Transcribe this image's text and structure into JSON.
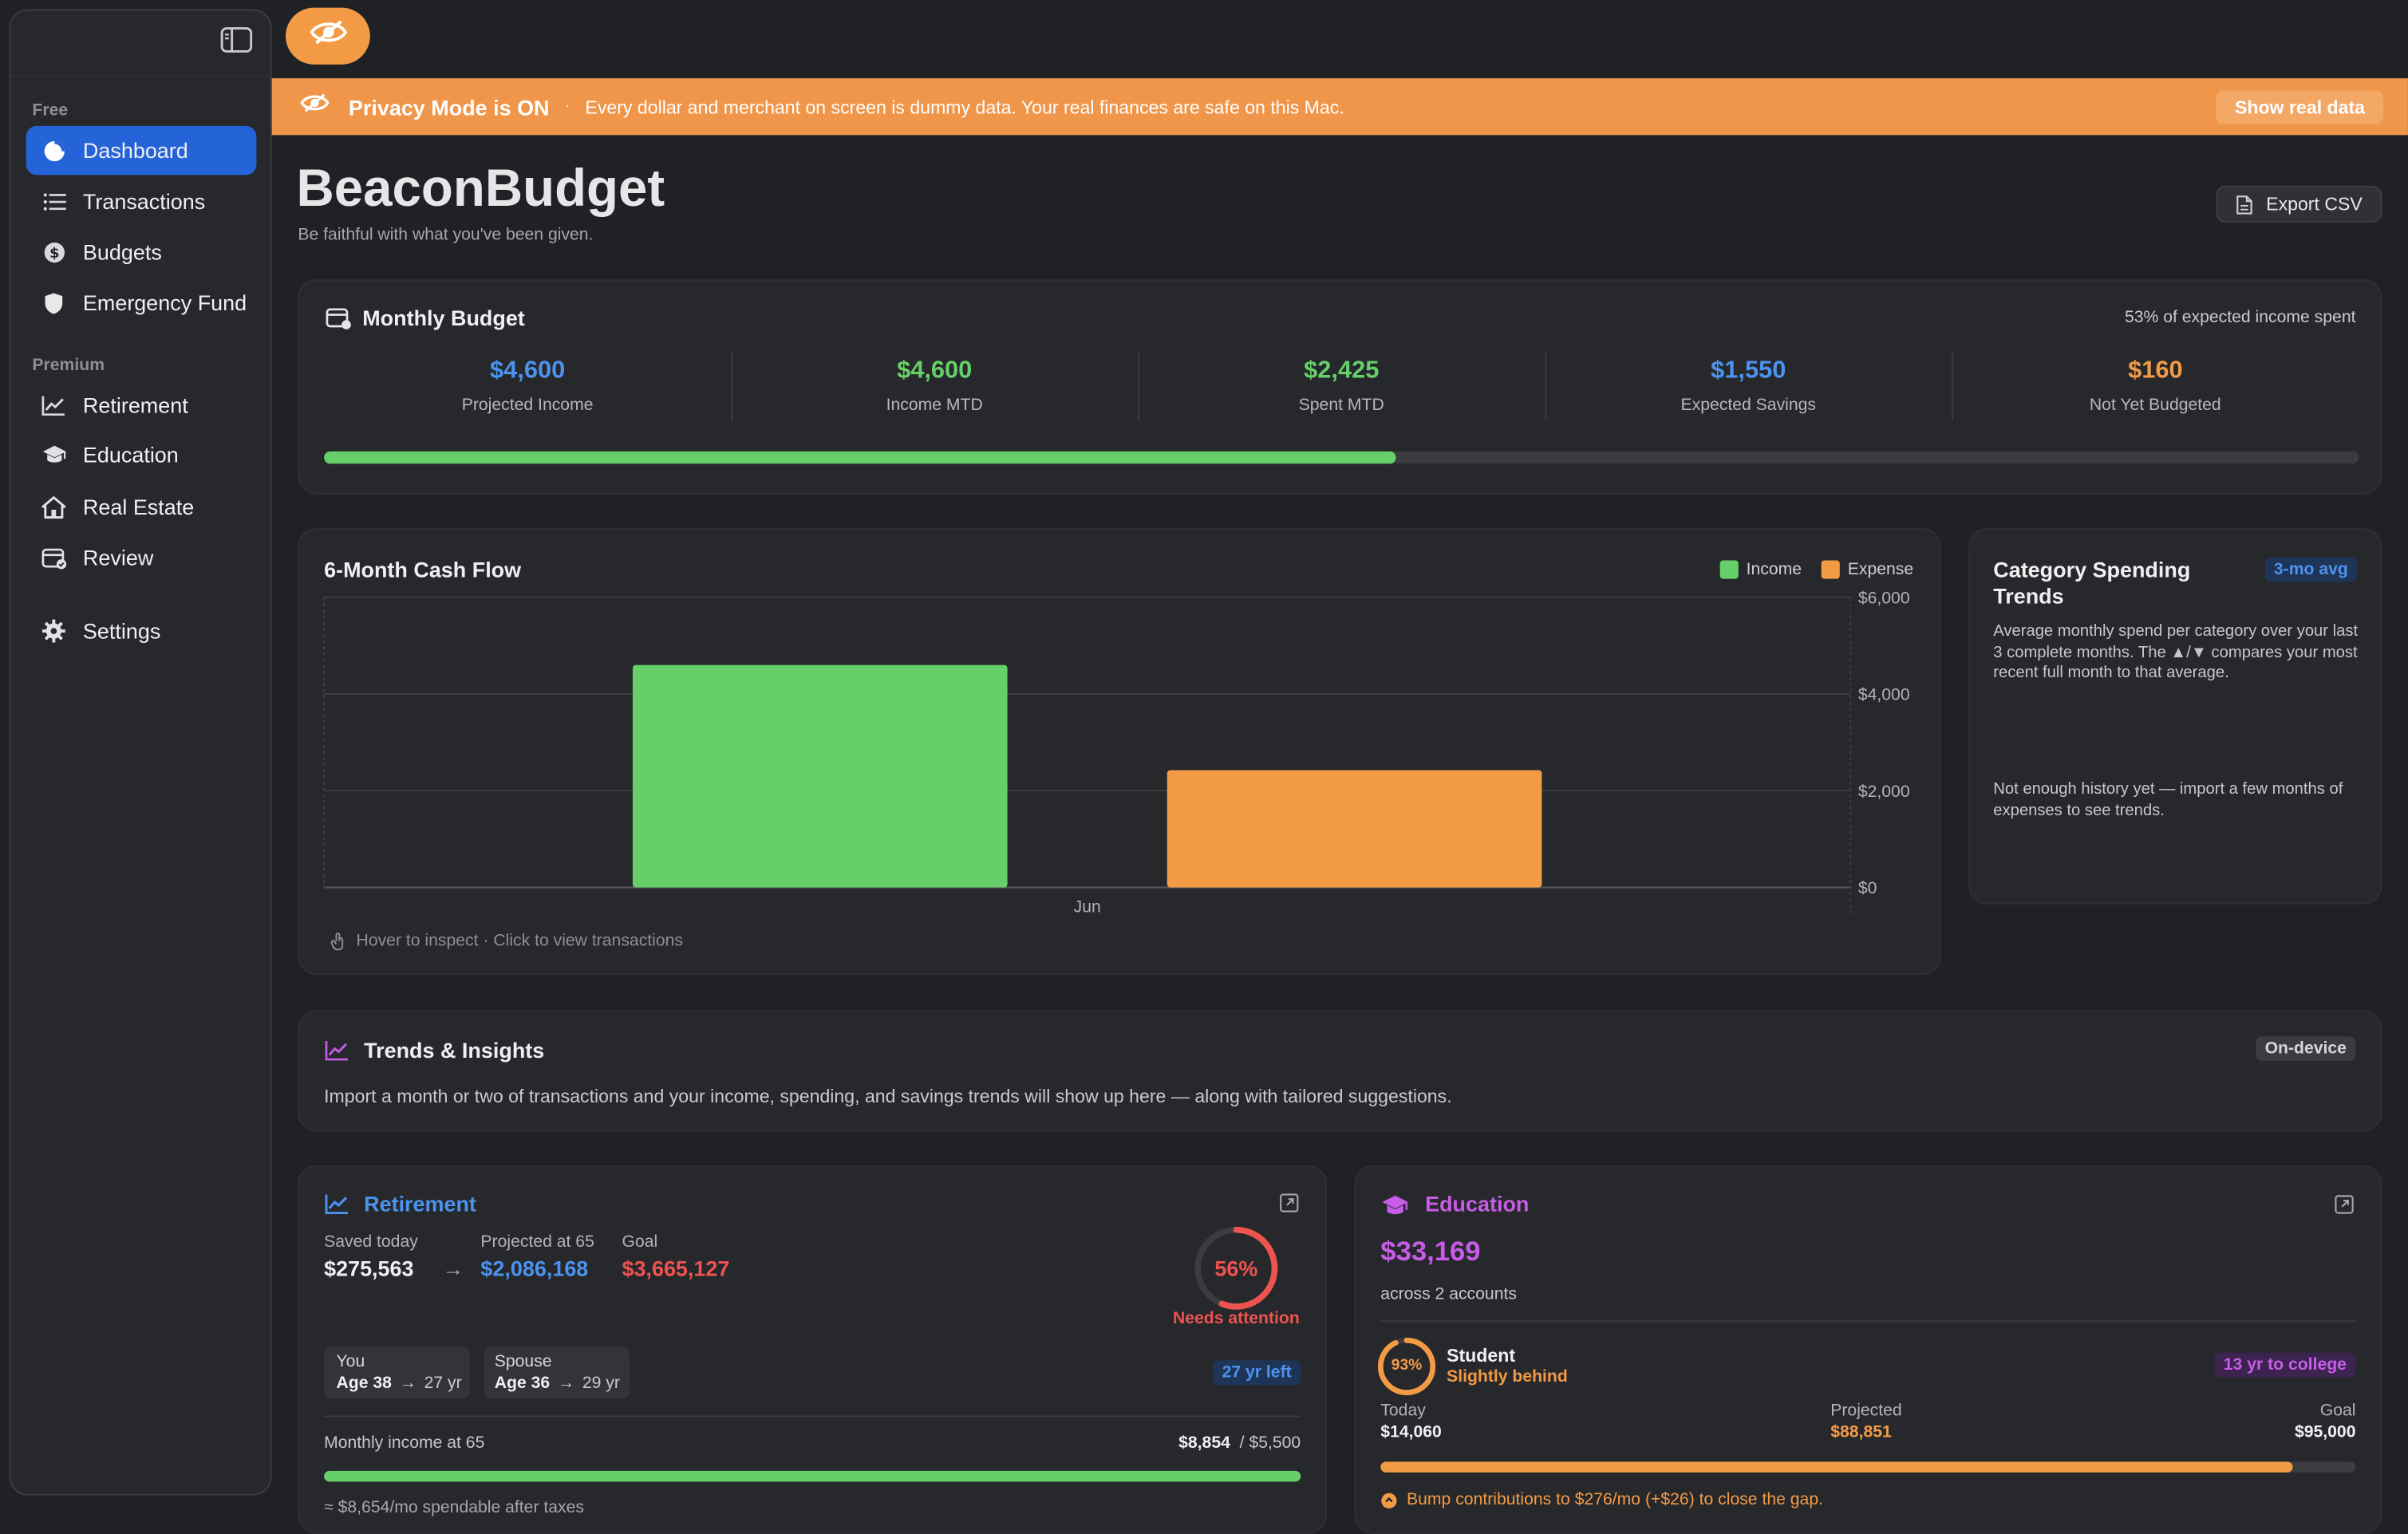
{
  "colors": {
    "accent_blue": "#2563d9",
    "orange": "#f0964a",
    "green": "#66cf69",
    "blue_text": "#4b93ee",
    "red": "#ef5350",
    "purple": "#c85ce8"
  },
  "sidebar": {
    "free_label": "Free",
    "premium_label": "Premium",
    "toggle_icon": "sidebar-toggle-icon",
    "items": [
      {
        "label": "Dashboard",
        "icon": "pie-chart-icon",
        "active": true
      },
      {
        "label": "Transactions",
        "icon": "list-icon"
      },
      {
        "label": "Budgets",
        "icon": "dollar-circle-icon"
      },
      {
        "label": "Emergency Fund",
        "icon": "shield-icon"
      },
      {
        "label": "Retirement",
        "icon": "line-chart-icon"
      },
      {
        "label": "Education",
        "icon": "graduation-cap-icon"
      },
      {
        "label": "Real Estate",
        "icon": "house-icon"
      },
      {
        "label": "Review",
        "icon": "calendar-check-icon"
      },
      {
        "label": "Settings",
        "icon": "gear-icon"
      }
    ]
  },
  "banner": {
    "title": "Privacy Mode is ON",
    "separator": "·",
    "message": "Every dollar and merchant on screen is dummy data. Your real finances are safe on this Mac.",
    "button": "Show real data"
  },
  "header": {
    "title": "BeaconBudget",
    "tagline": "Be faithful with what you've been given.",
    "export_label": "Export CSV"
  },
  "monthly_budget": {
    "title": "Monthly Budget",
    "status": "53% of expected income spent",
    "progress_fraction": 0.527,
    "kpis": [
      {
        "value": "$4,600",
        "label": "Projected Income",
        "color": "#4b93ee"
      },
      {
        "value": "$4,600",
        "label": "Income MTD",
        "color": "#66cf69"
      },
      {
        "value": "$2,425",
        "label": "Spent MTD",
        "color": "#66cf69"
      },
      {
        "value": "$1,550",
        "label": "Expected Savings",
        "color": "#4b93ee"
      },
      {
        "value": "$160",
        "label": "Not Yet Budgeted",
        "color": "#f39a45"
      }
    ]
  },
  "chart_data": {
    "type": "bar",
    "title": "6-Month Cash Flow",
    "categories": [
      "Jun"
    ],
    "series": [
      {
        "name": "Income",
        "values": [
          4600
        ],
        "color": "#66cf69"
      },
      {
        "name": "Expense",
        "values": [
          2425
        ],
        "color": "#f39a45"
      }
    ],
    "ylim": [
      0,
      6000
    ],
    "yticks": [
      "$6,000",
      "$4,000",
      "$2,000",
      "$0"
    ],
    "ytick_values": [
      6000,
      4000,
      2000,
      0
    ],
    "grid": true,
    "legend_position": "top-right",
    "hint": "Hover to inspect · Click to view transactions"
  },
  "category_trends": {
    "title": "Category Spending Trends",
    "badge": "3-mo avg",
    "description": "Average monthly spend per category over your last 3 complete months. The ▲/▼ compares your most recent full month to that average.",
    "empty": "Not enough history yet — import a few months of expenses to see trends."
  },
  "insights": {
    "title": "Trends & Insights",
    "badge": "On-device",
    "message": "Import a month or two of transactions and your income, spending, and savings trends will show up here — along with tailored suggestions."
  },
  "retirement": {
    "title": "Retirement",
    "saved_label": "Saved today",
    "saved_value": "$275,563",
    "arrow": "→",
    "projected_label": "Projected at 65",
    "projected_value": "$2,086,168",
    "goal_label": "Goal",
    "goal_value": "$3,665,127",
    "gauge_percent": 56,
    "gauge_text": "56%",
    "gauge_status": "Needs attention",
    "you_label": "You",
    "you_value": "Age 38",
    "you_years": "27 yr",
    "spouse_label": "Spouse",
    "spouse_value": "Age 36",
    "spouse_years": "29 yr",
    "years_left": "27 yr left",
    "income_label": "Monthly income at 65",
    "income_value": "$8,854",
    "income_target": "/ $5,500",
    "income_fraction": 1.0,
    "footnote": "≈ $8,654/mo spendable after taxes"
  },
  "education": {
    "title": "Education",
    "total": "$33,169",
    "accounts": "across 2 accounts",
    "student_percent": 93,
    "student_percent_text": "93%",
    "student_name": "Student",
    "student_status": "Slightly behind",
    "badge": "13 yr to college",
    "today_label": "Today",
    "today_value": "$14,060",
    "projected_label": "Projected",
    "projected_value": "$88,851",
    "goal_label": "Goal",
    "goal_value": "$95,000",
    "progress_fraction": 0.935,
    "tip": "Bump contributions to $276/mo (+$26) to close the gap."
  }
}
